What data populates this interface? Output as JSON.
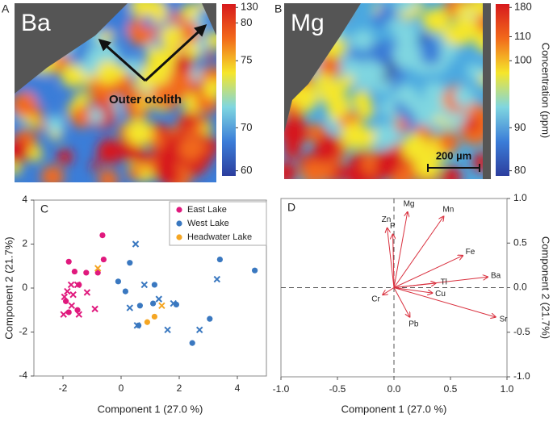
{
  "chart_data": [
    {
      "type": "heatmap",
      "panel": "A",
      "title": "Ba",
      "annotation": "Outer otolith",
      "colorbar_ticks": [
        130,
        80,
        75,
        70,
        60
      ]
    },
    {
      "type": "heatmap",
      "panel": "B",
      "title": "Mg",
      "colorbar_ticks": [
        180,
        110,
        100,
        90,
        80
      ],
      "colorbar_label": "Concentration (ppm)",
      "scale_bar": "200 µm"
    },
    {
      "type": "scatter",
      "panel": "C",
      "xlabel": "Component 1 (27.0 %)",
      "ylabel": "Component 2 (21.7%)",
      "xlim": [
        -3,
        5
      ],
      "ylim": [
        -4,
        4
      ],
      "xticks": [
        -2,
        0,
        2,
        4
      ],
      "yticks": [
        -4,
        -2,
        0,
        2,
        4
      ],
      "series": [
        {
          "name": "East Lake",
          "color": "#e0197d",
          "x": [
            -0.64,
            -1.8,
            -0.6,
            -1.2,
            -1.45,
            -0.8,
            -1.6,
            -1.9,
            -1.8,
            -1.5,
            -1.95,
            -1.98,
            -1.65,
            -1.45,
            -1.7,
            -1.72,
            -1.17,
            -0.9,
            -1.5,
            -1.85
          ],
          "values": [
            2.4,
            1.2,
            1.3,
            0.7,
            0.15,
            0.7,
            0.75,
            -0.6,
            -1.1,
            -1.0,
            -0.4,
            -1.2,
            -0.3,
            -1.2,
            -0.8,
            0.15,
            -0.2,
            -0.95,
            0.15,
            -0.15
          ],
          "markers": [
            "o",
            "o",
            "o",
            "o",
            "o",
            "o",
            "o",
            "o",
            "o",
            "o",
            "x",
            "x",
            "x",
            "x",
            "x",
            "x",
            "x",
            "x",
            "x",
            "x"
          ]
        },
        {
          "name": "West Lake",
          "color": "#3a78c0",
          "x": [
            0.3,
            -0.1,
            0.15,
            1.15,
            0.65,
            0.6,
            1.1,
            1.9,
            3.05,
            2.45,
            3.4,
            4.6,
            0.5,
            0.8,
            0.3,
            1.3,
            1.8,
            0.55,
            1.6,
            2.7,
            3.3
          ],
          "values": [
            1.15,
            0.3,
            -0.15,
            0.15,
            -0.8,
            -1.7,
            -0.7,
            -0.75,
            -1.4,
            -2.5,
            1.3,
            0.8,
            2.0,
            0.15,
            -0.9,
            -0.5,
            -0.7,
            -1.7,
            -1.9,
            -1.9,
            0.4
          ],
          "markers": [
            "o",
            "o",
            "o",
            "o",
            "o",
            "o",
            "o",
            "o",
            "o",
            "o",
            "o",
            "o",
            "x",
            "x",
            "x",
            "x",
            "x",
            "x",
            "x",
            "x",
            "x"
          ]
        },
        {
          "name": "Headwater Lake",
          "color": "#f5a623",
          "x": [
            0.9,
            1.15,
            -0.8,
            1.4
          ],
          "values": [
            -1.55,
            -1.3,
            0.9,
            -0.8
          ],
          "markers": [
            "o",
            "o",
            "x",
            "x"
          ]
        }
      ]
    },
    {
      "type": "biplot",
      "panel": "D",
      "xlabel": "Component 1 (27.0 %)",
      "ylabel": "Component 2 (21.7%)",
      "xlim": [
        -1,
        1
      ],
      "ylim": [
        -1,
        1
      ],
      "xticks": [
        {
          "value": -1,
          "label": "-1.0"
        },
        {
          "value": -0.5,
          "label": "-0.5"
        },
        {
          "value": 0,
          "label": "0.0"
        },
        {
          "value": 0.5,
          "label": "0.5"
        },
        {
          "value": 1,
          "label": "1.0"
        }
      ],
      "yticks": [
        {
          "value": -1,
          "label": "-1.0"
        },
        {
          "value": -0.5,
          "label": "-0.5"
        },
        {
          "value": 0,
          "label": "0.0"
        },
        {
          "value": 0.5,
          "label": "0.5"
        },
        {
          "value": 1,
          "label": "1.0"
        }
      ],
      "color": "#d9303e",
      "categories": [
        "Zn",
        "P",
        "Mg",
        "Mn",
        "Fe",
        "Ba",
        "Tl",
        "Cu",
        "Sr",
        "Pb",
        "Cr"
      ],
      "x": [
        -0.06,
        -0.01,
        0.12,
        0.44,
        0.61,
        0.83,
        0.37,
        0.34,
        0.9,
        0.14,
        -0.1
      ],
      "values": [
        0.67,
        0.6,
        0.85,
        0.8,
        0.36,
        0.12,
        0.05,
        -0.06,
        -0.33,
        -0.33,
        -0.08
      ]
    }
  ]
}
